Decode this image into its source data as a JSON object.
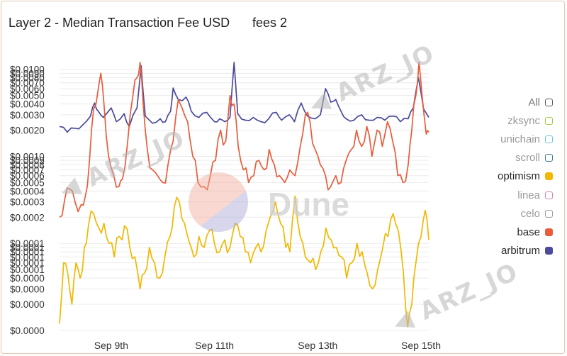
{
  "header": {
    "title": "Layer 2 - Median Transaction Fee USD",
    "subtitle": "fees 2"
  },
  "watermarks": {
    "brand": "Dune",
    "user": "ARZ_JO"
  },
  "legend": [
    {
      "label": "All",
      "color": "#5a5a5a",
      "filled": false,
      "label_color": "#7a7a7a"
    },
    {
      "label": "zksync",
      "color": "#9ccc3c",
      "filled": false,
      "label_color": "#9a9a9a"
    },
    {
      "label": "unichain",
      "color": "#6cc6d8",
      "filled": false,
      "label_color": "#9a9a9a"
    },
    {
      "label": "scroll",
      "color": "#3f7a8c",
      "filled": false,
      "label_color": "#9a9a9a"
    },
    {
      "label": "optimism",
      "color": "#f2b800",
      "filled": true,
      "label_color": "#2a2a2a"
    },
    {
      "label": "linea",
      "color": "#d67fb4",
      "filled": false,
      "label_color": "#9a9a9a"
    },
    {
      "label": "celo",
      "color": "#9b9b9b",
      "filled": false,
      "label_color": "#9a9a9a"
    },
    {
      "label": "base",
      "color": "#ea5b3b",
      "filled": true,
      "label_color": "#2a2a2a"
    },
    {
      "label": "arbitrum",
      "color": "#4a4b9a",
      "filled": true,
      "label_color": "#2a2a2a"
    }
  ],
  "chart_data": {
    "type": "line",
    "title": "Layer 2 - Median Transaction Fee USD",
    "subtitle": "fees 2",
    "y_scale": "log",
    "ylim": [
      1e-05,
      0.012
    ],
    "x_ticks": [
      "Sep 9th",
      "Sep 11th",
      "Sep 13th",
      "Sep 15th"
    ],
    "y_ticks": [
      {
        "label": "$0.0100",
        "value": 0.01
      },
      {
        "label": "$0.0090",
        "value": 0.009
      },
      {
        "label": "$0.0080",
        "value": 0.008
      },
      {
        "label": "$0.0070",
        "value": 0.007
      },
      {
        "label": "$0.0060",
        "value": 0.006
      },
      {
        "label": "$0.0050",
        "value": 0.005
      },
      {
        "label": "$0.0040",
        "value": 0.004
      },
      {
        "label": "$0.0030",
        "value": 0.003
      },
      {
        "label": "$0.0020",
        "value": 0.002
      },
      {
        "label": "$0.0010",
        "value": 0.001
      },
      {
        "label": "$0.0009",
        "value": 0.0009
      },
      {
        "label": "$0.0008",
        "value": 0.0008
      },
      {
        "label": "$0.0007",
        "value": 0.0007
      },
      {
        "label": "$0.0006",
        "value": 0.0006
      },
      {
        "label": "$0.0005",
        "value": 0.0005
      },
      {
        "label": "$0.0004",
        "value": 0.0004
      },
      {
        "label": "$0.0003",
        "value": 0.0003
      },
      {
        "label": "$0.0002",
        "value": 0.0002
      },
      {
        "label": "$0.0001",
        "value": 0.0001
      },
      {
        "label": "$0.0001",
        "value": 9e-05
      },
      {
        "label": "$0.0001",
        "value": 8e-05
      },
      {
        "label": "$0.0001",
        "value": 7e-05
      },
      {
        "label": "$0.0001",
        "value": 6e-05
      },
      {
        "label": "$0.0001",
        "value": 5e-05
      },
      {
        "label": "$0.0000",
        "value": 4e-05
      },
      {
        "label": "$0.0000",
        "value": 3e-05
      },
      {
        "label": "$0.0000",
        "value": 2e-05
      },
      {
        "label": "$0.0000",
        "value": 1e-05
      }
    ],
    "x_range": [
      "2025-09-08",
      "2025-09-15"
    ],
    "grid": true,
    "legend_position": "right",
    "series": [
      {
        "name": "arbitrum",
        "color": "#4a4b9a",
        "anchors": [
          [
            0.0,
            0.0022
          ],
          [
            0.15,
            0.0019
          ],
          [
            0.3,
            0.0021
          ],
          [
            0.45,
            0.0023
          ],
          [
            0.6,
            0.0029
          ],
          [
            0.68,
            0.0041
          ],
          [
            0.75,
            0.0033
          ],
          [
            0.85,
            0.0028
          ],
          [
            1.0,
            0.0036
          ],
          [
            1.1,
            0.0025
          ],
          [
            1.25,
            0.0031
          ],
          [
            1.35,
            0.0022
          ],
          [
            1.5,
            0.0036
          ],
          [
            1.58,
            0.011
          ],
          [
            1.66,
            0.0029
          ],
          [
            1.8,
            0.0024
          ],
          [
            1.95,
            0.0027
          ],
          [
            2.05,
            0.0025
          ],
          [
            2.15,
            0.0033
          ],
          [
            2.2,
            0.0061
          ],
          [
            2.3,
            0.0045
          ],
          [
            2.45,
            0.0048
          ],
          [
            2.55,
            0.0033
          ],
          [
            2.7,
            0.0028
          ],
          [
            2.85,
            0.0032
          ],
          [
            3.0,
            0.0025
          ],
          [
            3.1,
            0.0027
          ],
          [
            3.2,
            0.0025
          ],
          [
            3.3,
            0.0028
          ],
          [
            3.38,
            0.012
          ],
          [
            3.45,
            0.0031
          ],
          [
            3.6,
            0.0026
          ],
          [
            3.75,
            0.0028
          ],
          [
            3.9,
            0.0025
          ],
          [
            4.05,
            0.0027
          ],
          [
            4.2,
            0.0032
          ],
          [
            4.3,
            0.0026
          ],
          [
            4.45,
            0.003
          ],
          [
            4.55,
            0.0025
          ],
          [
            4.68,
            0.0041
          ],
          [
            4.8,
            0.0029
          ],
          [
            4.95,
            0.0027
          ],
          [
            5.05,
            0.003
          ],
          [
            5.15,
            0.006
          ],
          [
            5.25,
            0.0042
          ],
          [
            5.35,
            0.0045
          ],
          [
            5.45,
            0.0033
          ],
          [
            5.55,
            0.0027
          ],
          [
            5.7,
            0.0026
          ],
          [
            5.85,
            0.003
          ],
          [
            6.0,
            0.0026
          ],
          [
            6.15,
            0.0028
          ],
          [
            6.3,
            0.0026
          ],
          [
            6.45,
            0.0029
          ],
          [
            6.6,
            0.0025
          ],
          [
            6.75,
            0.0027
          ],
          [
            6.85,
            0.0036
          ],
          [
            6.95,
            0.008
          ],
          [
            7.05,
            0.0035
          ],
          [
            7.15,
            0.0028
          ]
        ]
      },
      {
        "name": "base",
        "color": "#ea5b3b",
        "anchors": [
          [
            0.0,
            0.0002
          ],
          [
            0.1,
            0.00032
          ],
          [
            0.2,
            0.00042
          ],
          [
            0.3,
            0.0003
          ],
          [
            0.42,
            0.00028
          ],
          [
            0.5,
            0.00035
          ],
          [
            0.58,
            0.0009
          ],
          [
            0.66,
            0.0035
          ],
          [
            0.75,
            0.006
          ],
          [
            0.8,
            0.009
          ],
          [
            0.86,
            0.004
          ],
          [
            0.95,
            0.001
          ],
          [
            1.05,
            0.0006
          ],
          [
            1.15,
            0.00045
          ],
          [
            1.22,
            0.00055
          ],
          [
            1.32,
            0.0015
          ],
          [
            1.42,
            0.005
          ],
          [
            1.5,
            0.008
          ],
          [
            1.56,
            0.012
          ],
          [
            1.62,
            0.004
          ],
          [
            1.7,
            0.0012
          ],
          [
            1.8,
            0.0007
          ],
          [
            1.9,
            0.0006
          ],
          [
            2.0,
            0.0005
          ],
          [
            2.1,
            0.0008
          ],
          [
            2.2,
            0.0015
          ],
          [
            2.3,
            0.0045
          ],
          [
            2.38,
            0.0035
          ],
          [
            2.48,
            0.0025
          ],
          [
            2.58,
            0.001
          ],
          [
            2.68,
            0.0005
          ],
          [
            2.8,
            0.00045
          ],
          [
            2.92,
            0.0006
          ],
          [
            3.02,
            0.0009
          ],
          [
            3.12,
            0.002
          ],
          [
            3.22,
            0.0015
          ],
          [
            3.3,
            0.005
          ],
          [
            3.38,
            0.004
          ],
          [
            3.46,
            0.0013
          ],
          [
            3.56,
            0.0007
          ],
          [
            3.66,
            0.0005
          ],
          [
            3.76,
            0.0006
          ],
          [
            3.86,
            0.0009
          ],
          [
            3.96,
            0.0007
          ],
          [
            4.06,
            0.0012
          ],
          [
            4.16,
            0.0008
          ],
          [
            4.26,
            0.0006
          ],
          [
            4.36,
            0.0005
          ],
          [
            4.46,
            0.0007
          ],
          [
            4.56,
            0.0006
          ],
          [
            4.66,
            0.0013
          ],
          [
            4.76,
            0.003
          ],
          [
            4.85,
            0.0025
          ],
          [
            4.95,
            0.0012
          ],
          [
            5.05,
            0.0008
          ],
          [
            5.15,
            0.0006
          ],
          [
            5.25,
            0.00045
          ],
          [
            5.35,
            0.0006
          ],
          [
            5.45,
            0.0005
          ],
          [
            5.55,
            0.0009
          ],
          [
            5.65,
            0.0012
          ],
          [
            5.75,
            0.002
          ],
          [
            5.85,
            0.0013
          ],
          [
            5.95,
            0.0022
          ],
          [
            6.05,
            0.001
          ],
          [
            6.15,
            0.002
          ],
          [
            6.25,
            0.0013
          ],
          [
            6.35,
            0.0025
          ],
          [
            6.45,
            0.0015
          ],
          [
            6.55,
            0.0006
          ],
          [
            6.65,
            0.0005
          ],
          [
            6.75,
            0.0008
          ],
          [
            6.82,
            0.002
          ],
          [
            6.9,
            0.005
          ],
          [
            6.96,
            0.012
          ],
          [
            7.02,
            0.005
          ],
          [
            7.1,
            0.0018
          ],
          [
            7.15,
            0.0019
          ]
        ]
      },
      {
        "name": "optimism",
        "color": "#f2b800",
        "anchors": [
          [
            0.0,
            1.2e-05
          ],
          [
            0.08,
            6e-05
          ],
          [
            0.16,
            4.5e-05
          ],
          [
            0.24,
            2e-05
          ],
          [
            0.32,
            6e-05
          ],
          [
            0.4,
            4e-05
          ],
          [
            0.48,
            9e-05
          ],
          [
            0.56,
            0.00016
          ],
          [
            0.66,
            0.00022
          ],
          [
            0.76,
            0.00015
          ],
          [
            0.86,
            0.00017
          ],
          [
            0.96,
            0.0001
          ],
          [
            1.06,
            7e-05
          ],
          [
            1.16,
            0.00012
          ],
          [
            1.26,
            0.00016
          ],
          [
            1.36,
            9e-05
          ],
          [
            1.46,
            7e-05
          ],
          [
            1.56,
            3e-05
          ],
          [
            1.64,
            4.5e-05
          ],
          [
            1.74,
            9e-05
          ],
          [
            1.84,
            6e-05
          ],
          [
            1.94,
            4e-05
          ],
          [
            2.04,
            7e-05
          ],
          [
            2.14,
            0.00012
          ],
          [
            2.22,
            0.00026
          ],
          [
            2.32,
            0.0003
          ],
          [
            2.42,
            0.00017
          ],
          [
            2.52,
            0.0001
          ],
          [
            2.6,
            7e-05
          ],
          [
            2.7,
            0.00012
          ],
          [
            2.8,
            9e-05
          ],
          [
            2.9,
            0.00014
          ],
          [
            3.0,
            0.0001
          ],
          [
            3.1,
            8e-05
          ],
          [
            3.2,
            0.00011
          ],
          [
            3.3,
            9e-05
          ],
          [
            3.4,
            0.00017
          ],
          [
            3.5,
            0.00012
          ],
          [
            3.6,
            8e-05
          ],
          [
            3.7,
            6e-05
          ],
          [
            3.8,
            9e-05
          ],
          [
            3.9,
            8e-05
          ],
          [
            4.0,
            0.00014
          ],
          [
            4.1,
            0.00022
          ],
          [
            4.18,
            0.0003
          ],
          [
            4.28,
            0.00017
          ],
          [
            4.38,
            9e-05
          ],
          [
            4.46,
            8e-05
          ],
          [
            4.56,
            0.00035
          ],
          [
            4.66,
            0.00012
          ],
          [
            4.76,
            7e-05
          ],
          [
            4.86,
            6e-05
          ],
          [
            4.96,
            5e-05
          ],
          [
            5.06,
            8e-05
          ],
          [
            5.16,
            0.00015
          ],
          [
            5.26,
            0.00011
          ],
          [
            5.36,
            9e-05
          ],
          [
            5.46,
            7e-05
          ],
          [
            5.56,
            4e-05
          ],
          [
            5.66,
            6e-05
          ],
          [
            5.76,
            0.0001
          ],
          [
            5.86,
            8e-05
          ],
          [
            5.96,
            4.5e-05
          ],
          [
            6.06,
            3e-05
          ],
          [
            6.16,
            5e-05
          ],
          [
            6.26,
            9e-05
          ],
          [
            6.36,
            0.00012
          ],
          [
            6.46,
            0.00022
          ],
          [
            6.56,
            0.00014
          ],
          [
            6.66,
            4.5e-05
          ],
          [
            6.74,
            1.1e-05
          ],
          [
            6.82,
            2e-05
          ],
          [
            6.9,
            6e-05
          ],
          [
            7.0,
            0.00012
          ],
          [
            7.08,
            0.00024
          ],
          [
            7.15,
            0.00011
          ]
        ]
      }
    ]
  }
}
